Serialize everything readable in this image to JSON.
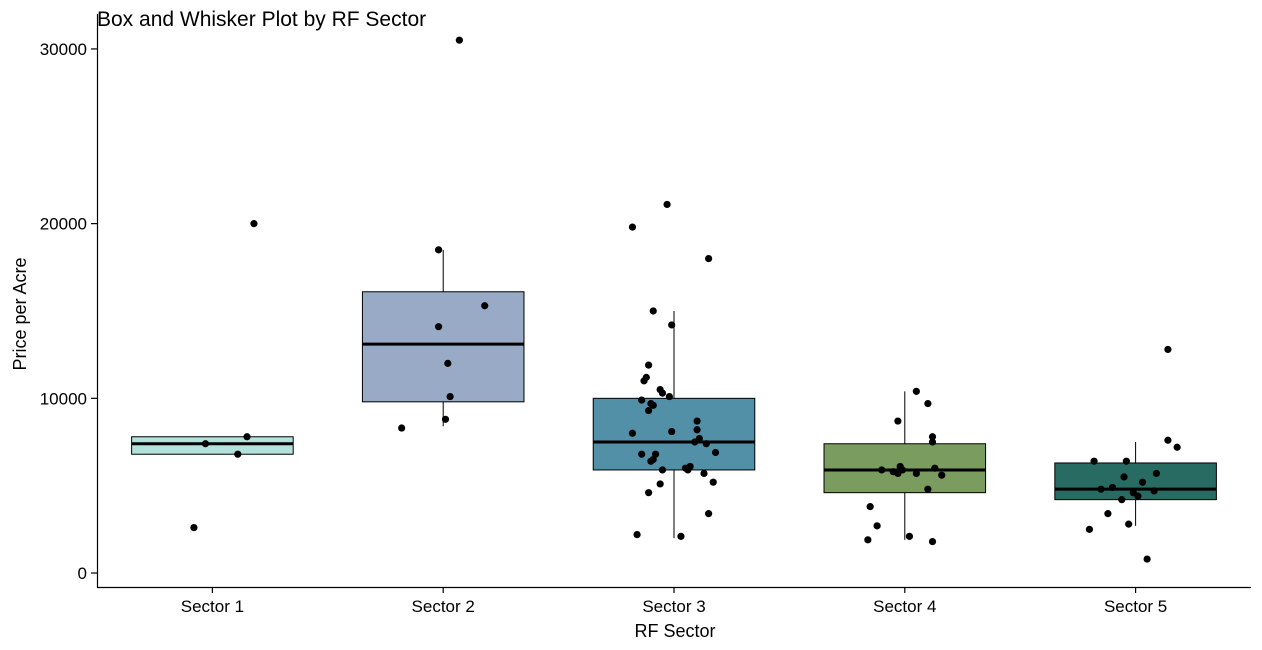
{
  "chart_data": {
    "type": "box",
    "title": "Box and Whisker Plot by RF Sector",
    "xlabel": "RF Sector",
    "ylabel": "Price per Acre",
    "ylim": [
      -800,
      32000
    ],
    "yticks": [
      0,
      10000,
      20000,
      30000
    ],
    "ytick_labels": [
      "0",
      "10000",
      "20000",
      "30000"
    ],
    "grid": false,
    "legend": "none",
    "categories": [
      "Sector 1",
      "Sector 2",
      "Sector 3",
      "Sector 4",
      "Sector 5"
    ],
    "boxes": [
      {
        "category": "Sector 1",
        "fill": "#B3E2DC",
        "q1": 6800,
        "median": 7400,
        "q3": 7800,
        "whisker_low": 6800,
        "whisker_high": 7800
      },
      {
        "category": "Sector 2",
        "fill": "#98AAC5",
        "q1": 9800,
        "median": 13100,
        "q3": 16100,
        "whisker_low": 8400,
        "whisker_high": 18500
      },
      {
        "category": "Sector 3",
        "fill": "#5290A7",
        "q1": 5900,
        "median": 7500,
        "q3": 10000,
        "whisker_low": 2000,
        "whisker_high": 15000
      },
      {
        "category": "Sector 4",
        "fill": "#7A9D5F",
        "q1": 4600,
        "median": 5900,
        "q3": 7400,
        "whisker_low": 1900,
        "whisker_high": 10400
      },
      {
        "category": "Sector 5",
        "fill": "#276B63",
        "q1": 4200,
        "median": 4800,
        "q3": 6300,
        "whisker_low": 2700,
        "whisker_high": 7500
      }
    ],
    "points": [
      {
        "category": "Sector 1",
        "values": [
          20000,
          7400,
          7800,
          6800,
          2600
        ],
        "jitter": [
          0.18,
          -0.03,
          0.15,
          0.11,
          -0.08
        ]
      },
      {
        "category": "Sector 2",
        "values": [
          30500,
          18500,
          15300,
          14100,
          12000,
          10100,
          8800,
          8300
        ],
        "jitter": [
          0.07,
          -0.02,
          0.18,
          -0.02,
          0.02,
          0.03,
          0.01,
          -0.18
        ]
      },
      {
        "category": "Sector 3",
        "values": [
          21100,
          19800,
          18000,
          15000,
          14200,
          11900,
          11200,
          11000,
          10500,
          10300,
          10100,
          9900,
          9700,
          9600,
          9300,
          8700,
          8200,
          8100,
          8000,
          7700,
          7500,
          7400,
          6900,
          6800,
          6800,
          6500,
          6400,
          6100,
          6000,
          5900,
          5900,
          5700,
          5200,
          5100,
          4600,
          3400,
          2200,
          2100
        ],
        "jitter": [
          -0.03,
          -0.18,
          0.15,
          -0.09,
          -0.01,
          -0.11,
          -0.12,
          -0.13,
          -0.06,
          -0.05,
          -0.02,
          -0.14,
          -0.1,
          -0.09,
          -0.11,
          0.1,
          0.1,
          -0.01,
          -0.18,
          0.11,
          0.09,
          0.14,
          0.18,
          -0.08,
          -0.14,
          -0.09,
          -0.1,
          0.07,
          0.05,
          -0.05,
          0.06,
          0.13,
          0.17,
          -0.06,
          -0.11,
          0.15,
          -0.16,
          0.03
        ]
      },
      {
        "category": "Sector 4",
        "values": [
          10400,
          9700,
          8700,
          7800,
          7500,
          6100,
          6000,
          5900,
          5900,
          5800,
          5700,
          5700,
          5600,
          4800,
          3800,
          2700,
          2100,
          1900,
          1800
        ],
        "jitter": [
          0.05,
          0.1,
          -0.03,
          0.12,
          0.12,
          -0.02,
          0.13,
          -0.1,
          -0.01,
          -0.05,
          0.05,
          -0.03,
          0.16,
          0.1,
          -0.15,
          -0.12,
          0.02,
          -0.16,
          0.12
        ]
      },
      {
        "category": "Sector 5",
        "values": [
          12800,
          7600,
          7200,
          6400,
          6400,
          5700,
          5500,
          5200,
          4900,
          4800,
          4700,
          4600,
          4400,
          4200,
          3400,
          2800,
          2500,
          800
        ],
        "jitter": [
          0.14,
          0.14,
          0.18,
          -0.18,
          -0.04,
          0.09,
          -0.05,
          0.03,
          -0.1,
          -0.15,
          0.08,
          -0.01,
          0.01,
          -0.06,
          -0.12,
          -0.03,
          -0.2,
          0.05
        ]
      }
    ]
  }
}
